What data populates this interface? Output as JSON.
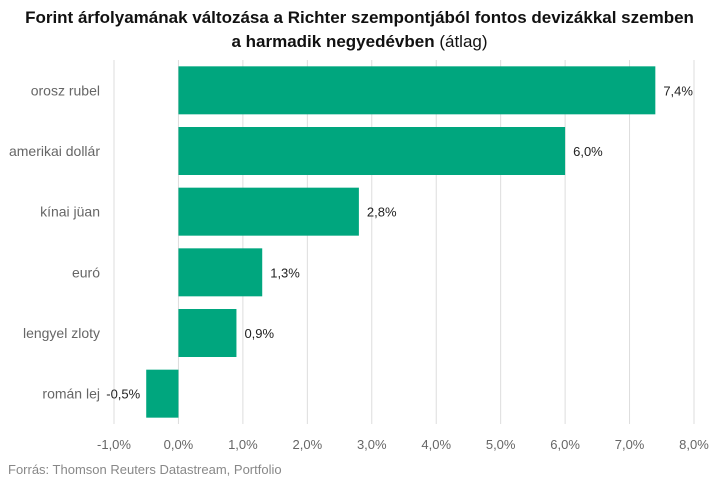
{
  "title": {
    "line1": "Forint árfolyamának változása a Richter szempontjából fontos devizákkal szemben",
    "line2_bold": "a harmadik negyedévben",
    "line2_normal": " (átlag)"
  },
  "source": "Forrás: Thomson Reuters Datastream, Portfolio",
  "colors": {
    "bar": "#00a67e",
    "grid": "#dddddd",
    "axis_text": "#666666",
    "label_text": "#222222"
  },
  "chart_data": {
    "type": "bar",
    "orientation": "horizontal",
    "categories": [
      "orosz rubel",
      "amerikai dollár",
      "kínai jüan",
      "euró",
      "lengyel zloty",
      "román lej"
    ],
    "values": [
      7.4,
      6.0,
      2.8,
      1.3,
      0.9,
      -0.5
    ],
    "value_labels": [
      "7,4%",
      "6,0%",
      "2,8%",
      "1,3%",
      "0,9%",
      "-0,5%"
    ],
    "xlim": [
      -1,
      8
    ],
    "xticks": [
      -1,
      0,
      1,
      2,
      3,
      4,
      5,
      6,
      7,
      8
    ],
    "xtick_labels": [
      "-1,0%",
      "0,0%",
      "1,0%",
      "2,0%",
      "3,0%",
      "4,0%",
      "5,0%",
      "6,0%",
      "7,0%",
      "8,0%"
    ],
    "grid": true
  }
}
